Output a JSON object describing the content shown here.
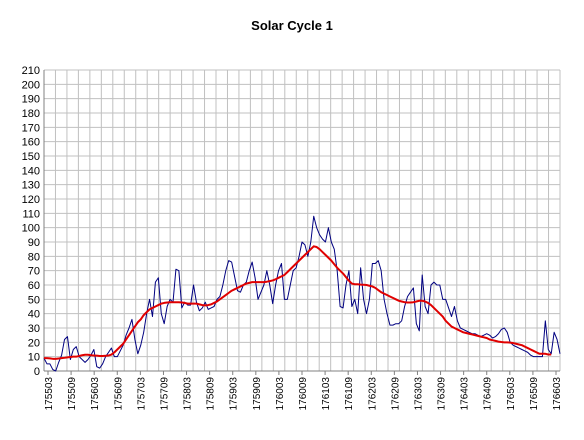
{
  "chart_data": {
    "type": "line",
    "title": "Solar Cycle 1",
    "xlabel": "",
    "ylabel": "",
    "ylim": [
      0,
      210
    ],
    "y_ticks": [
      0,
      10,
      20,
      30,
      40,
      50,
      60,
      70,
      80,
      90,
      100,
      110,
      120,
      130,
      140,
      150,
      160,
      170,
      180,
      190,
      200,
      210
    ],
    "x_tick_labels": [
      "175503",
      "175509",
      "175603",
      "175609",
      "175703",
      "175709",
      "175803",
      "175809",
      "175903",
      "175909",
      "176003",
      "176009",
      "176103",
      "176109",
      "176203",
      "176209",
      "176303",
      "176309",
      "176403",
      "176409",
      "176503",
      "176509",
      "176603"
    ],
    "grid": true,
    "legend": "none",
    "series": [
      {
        "color": "#000080",
        "values": [
          9,
          5,
          5,
          1,
          0,
          6,
          11,
          22,
          24,
          8,
          15,
          17,
          10,
          8,
          6,
          8,
          11,
          15,
          3,
          2,
          5,
          10,
          13,
          16,
          10,
          10,
          14,
          18,
          25,
          30,
          36,
          22,
          12,
          18,
          27,
          40,
          50,
          38,
          62,
          65,
          40,
          33,
          45,
          50,
          48,
          71,
          70,
          44,
          48,
          46,
          46,
          60,
          48,
          42,
          44,
          48,
          43,
          44,
          45,
          50,
          52,
          60,
          70,
          77,
          76,
          66,
          56,
          55,
          60,
          62,
          70,
          76,
          65,
          50,
          55,
          60,
          70,
          60,
          47,
          60,
          70,
          75,
          50,
          50,
          60,
          70,
          72,
          80,
          90,
          88,
          80,
          90,
          108,
          100,
          95,
          92,
          90,
          100,
          90,
          85,
          70,
          45,
          44,
          60,
          70,
          45,
          50,
          40,
          72,
          50,
          40,
          50,
          75,
          75,
          77,
          70,
          50,
          40,
          32,
          32,
          33,
          33,
          35,
          45,
          52,
          55,
          58,
          33,
          28,
          67,
          45,
          40,
          60,
          62,
          60,
          60,
          50,
          50,
          44,
          38,
          45,
          35,
          30,
          29,
          28,
          27,
          26,
          26,
          25,
          24,
          25,
          26,
          25,
          23,
          24,
          26,
          29,
          30,
          27,
          20,
          18,
          17,
          16,
          15,
          14,
          13,
          11,
          10,
          10,
          10,
          10,
          35,
          15,
          12,
          27,
          22,
          12
        ],
        "stroke_width": 1
      },
      {
        "color": "#e00000",
        "values": [
          9,
          9,
          8.8,
          8.5,
          8.5,
          8.7,
          9,
          9.2,
          9.5,
          9.8,
          10,
          10,
          10.5,
          11,
          11.3,
          11.3,
          11,
          10.8,
          10.7,
          10.5,
          10.5,
          10.6,
          10.8,
          11.5,
          13,
          15,
          17,
          19,
          22,
          25,
          28,
          31,
          34,
          36,
          39,
          41,
          43,
          44,
          45,
          46,
          47,
          47.5,
          47.8,
          48,
          48,
          48,
          48,
          47.8,
          47.5,
          47,
          47,
          47,
          47,
          46.5,
          46,
          45.8,
          46,
          46.5,
          47.5,
          48.5,
          50,
          51.5,
          53,
          54.5,
          56,
          57,
          58,
          59,
          60,
          61,
          61.5,
          62,
          62,
          62,
          62,
          62,
          62.3,
          62.7,
          63.2,
          64,
          65,
          66,
          67,
          69,
          71,
          73,
          75,
          77,
          79,
          81,
          83,
          85,
          87,
          86.5,
          85,
          83,
          81,
          79,
          77,
          74.5,
          72,
          70,
          68,
          65.5,
          63,
          61,
          60.5,
          60.5,
          60.3,
          60.2,
          60,
          59.5,
          59,
          58,
          56.5,
          55,
          54,
          53,
          52,
          51,
          50,
          49,
          48.5,
          48,
          47.8,
          47.8,
          48,
          48.5,
          49,
          49,
          48.5,
          47.5,
          46,
          44,
          42,
          40,
          38,
          35,
          33,
          31,
          30,
          29,
          28,
          27,
          26.5,
          26,
          25.5,
          25,
          24.5,
          24,
          23.5,
          23,
          22,
          21.5,
          21,
          20.5,
          20.2,
          20,
          20,
          19.8,
          19.5,
          19,
          18.5,
          18,
          17,
          16,
          15,
          14,
          13,
          12,
          12,
          12,
          11.5,
          11.5
        ],
        "stroke_width": 2
      }
    ]
  }
}
